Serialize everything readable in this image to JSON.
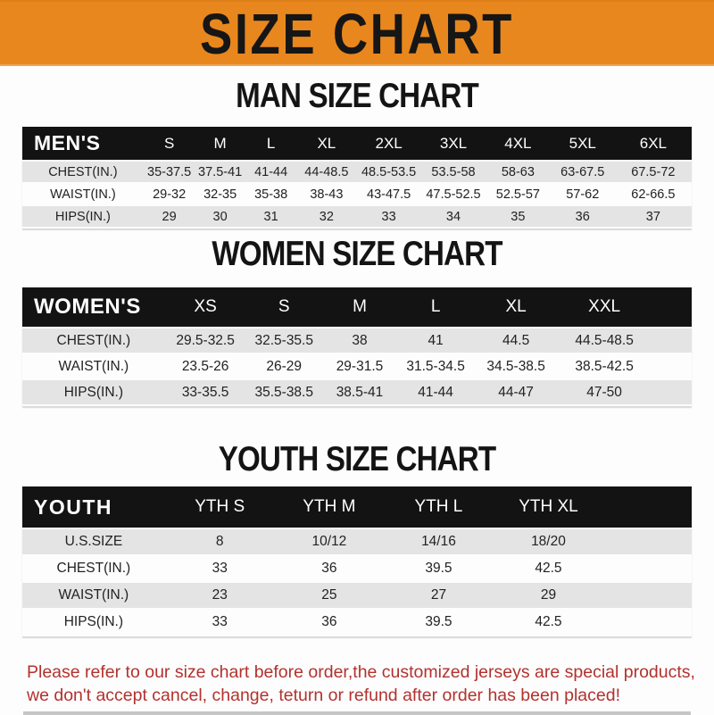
{
  "banner": {
    "title": "SIZE CHART",
    "bg_color": "#e8871e",
    "text_color": "#161616"
  },
  "colors": {
    "accent_orange": "#e8871e",
    "table_header_bg": "#131313",
    "table_header_text": "#ffffff",
    "row_alt_gray": "#e4e4e4",
    "footer_red": "#b2322e"
  },
  "chart_data": [
    {
      "type": "table",
      "title": "MAN SIZE CHART",
      "header": [
        "MEN'S",
        "S",
        "M",
        "L",
        "XL",
        "2XL",
        "3XL",
        "4XL",
        "5XL",
        "6XL"
      ],
      "rows": [
        [
          "CHEST(IN.)",
          "35-37.5",
          "37.5-41",
          "41-44",
          "44-48.5",
          "48.5-53.5",
          "53.5-58",
          "58-63",
          "63-67.5",
          "67.5-72"
        ],
        [
          "WAIST(IN.)",
          "29-32",
          "32-35",
          "35-38",
          "38-43",
          "43-47.5",
          "47.5-52.5",
          "52.5-57",
          "57-62",
          "62-66.5"
        ],
        [
          "HIPS(IN.)",
          "29",
          "30",
          "31",
          "32",
          "33",
          "34",
          "35",
          "36",
          "37"
        ]
      ]
    },
    {
      "type": "table",
      "title": "WOMEN SIZE CHART",
      "header": [
        "WOMEN'S",
        "XS",
        "S",
        "M",
        "L",
        "XL",
        "XXL"
      ],
      "rows": [
        [
          "CHEST(IN.)",
          "29.5-32.5",
          "32.5-35.5",
          "38",
          "41",
          "44.5",
          "44.5-48.5"
        ],
        [
          "WAIST(IN.)",
          "23.5-26",
          "26-29",
          "29-31.5",
          "31.5-34.5",
          "34.5-38.5",
          "38.5-42.5"
        ],
        [
          "HIPS(IN.)",
          "33-35.5",
          "35.5-38.5",
          "38.5-41",
          "41-44",
          "44-47",
          "47-50"
        ]
      ]
    },
    {
      "type": "table",
      "title": "YOUTH SIZE CHART",
      "header": [
        "YOUTH",
        "YTH S",
        "YTH M",
        "YTH L",
        "YTH XL"
      ],
      "rows": [
        [
          "U.S.SIZE",
          "8",
          "10/12",
          "14/16",
          "18/20"
        ],
        [
          "CHEST(IN.)",
          "33",
          "36",
          "39.5",
          "42.5"
        ],
        [
          "WAIST(IN.)",
          "23",
          "25",
          "27",
          "29"
        ],
        [
          "HIPS(IN.)",
          "33",
          "36",
          "39.5",
          "42.5"
        ]
      ]
    }
  ],
  "footer": {
    "lines": [
      "Please refer to our size chart before order,the customized jerseys are special products,",
      "we don't accept cancel, change, teturn or refund after order has been placed!"
    ]
  }
}
